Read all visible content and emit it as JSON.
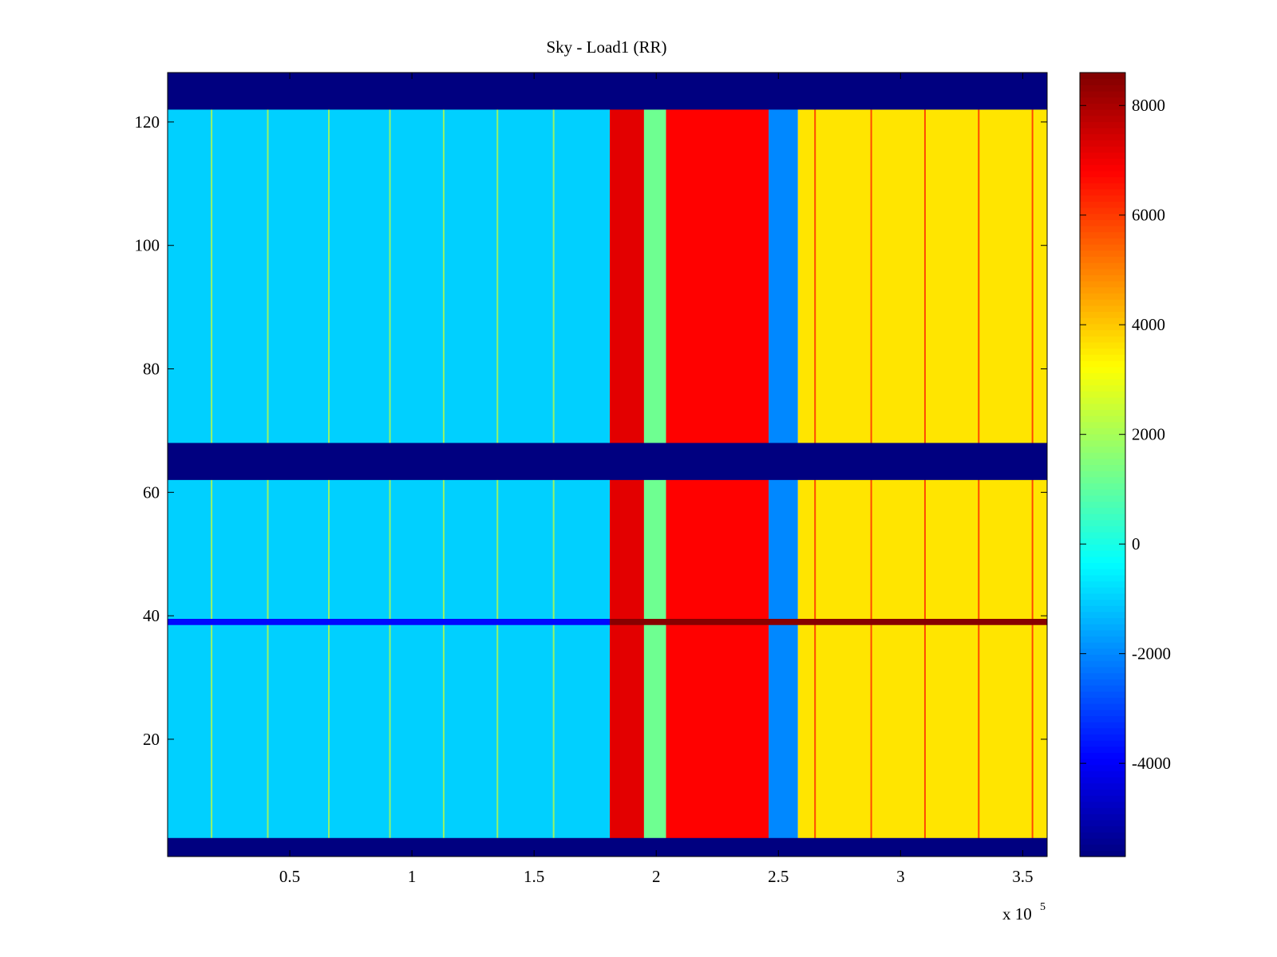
{
  "chart_data": {
    "type": "heatmap",
    "title": "Sky - Load1 (RR)",
    "xlabel": "",
    "ylabel": "",
    "x_exponent_label": "x 10",
    "x_exponent_power": "5",
    "xlim": [
      0,
      3.6
    ],
    "ylim": [
      1,
      128
    ],
    "xticks": [
      0.5,
      1,
      1.5,
      2,
      2.5,
      3,
      3.5
    ],
    "xtick_labels": [
      "0.5",
      "1",
      "1.5",
      "2",
      "2.5",
      "3",
      "3.5"
    ],
    "yticks": [
      20,
      40,
      60,
      80,
      100,
      120
    ],
    "ytick_labels": [
      "20",
      "40",
      "60",
      "80",
      "100",
      "120"
    ],
    "colorbar": {
      "range": [
        -5700,
        8600
      ],
      "ticks": [
        -4000,
        -2000,
        0,
        2000,
        4000,
        6000,
        8000
      ],
      "tick_labels": [
        "-4000",
        "-2000",
        "0",
        "2000",
        "4000",
        "6000",
        "8000"
      ],
      "colormap": "jet"
    },
    "flagged_rows": [
      {
        "from": 1,
        "to": 4,
        "value": -5700
      },
      {
        "from": 62,
        "to": 68,
        "value": -5700
      },
      {
        "from": 122,
        "to": 128,
        "value": -5700
      }
    ],
    "regions": [
      {
        "x_from": 0.0,
        "x_to": 1.81,
        "value": -1000
      },
      {
        "x_from": 1.81,
        "x_to": 1.95,
        "value": 7200
      },
      {
        "x_from": 1.95,
        "x_to": 2.04,
        "value": 1200
      },
      {
        "x_from": 2.04,
        "x_to": 2.46,
        "value": 6800
      },
      {
        "x_from": 2.46,
        "x_to": 2.58,
        "value": -2000
      },
      {
        "x_from": 2.58,
        "x_to": 3.6,
        "value": 3600
      }
    ],
    "anomalous_row": {
      "y": 39,
      "value_left": -3800,
      "value_right": 8500
    },
    "gaps": [
      0.18,
      0.41,
      0.66,
      0.91,
      1.13,
      1.35,
      1.58,
      2.65,
      2.88,
      3.1,
      3.32,
      3.54
    ]
  }
}
